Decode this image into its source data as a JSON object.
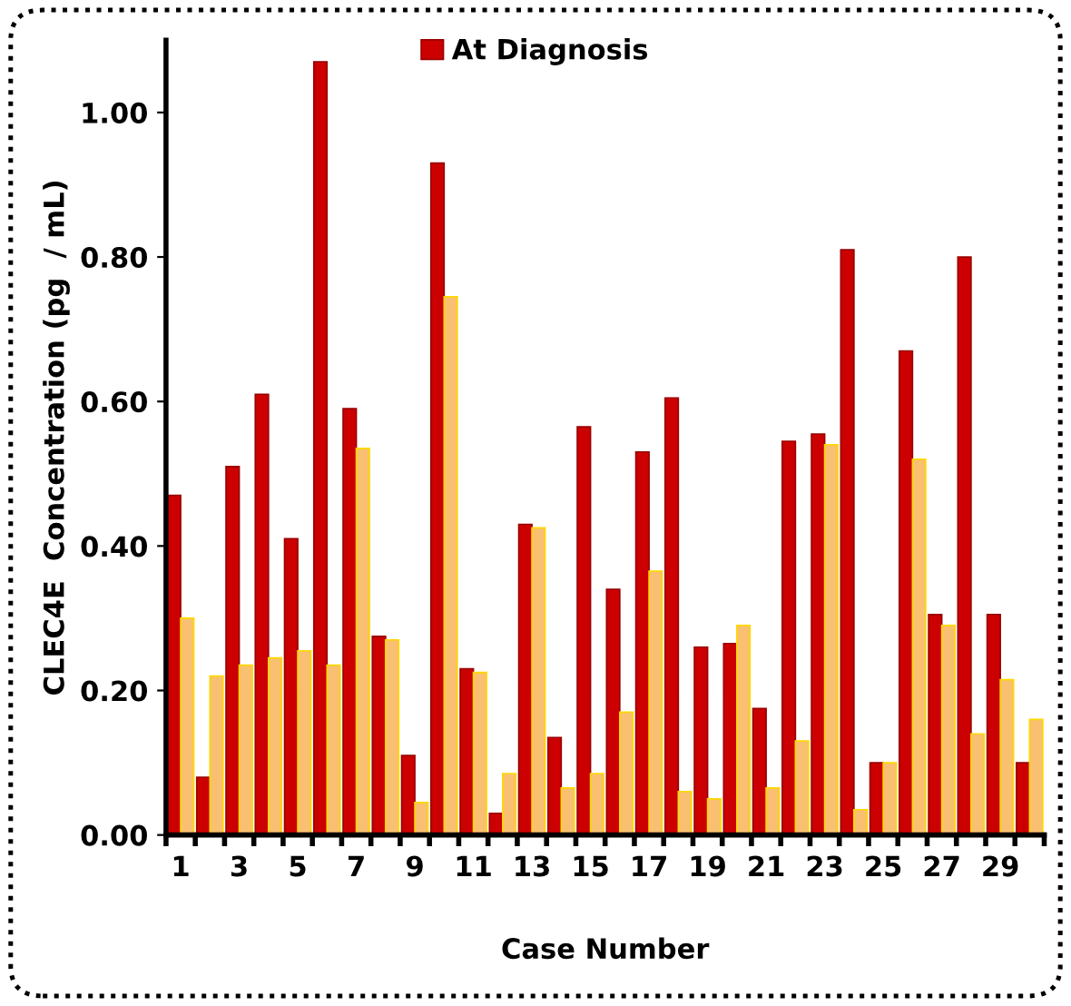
{
  "chart_data": {
    "type": "bar",
    "xlabel": "Case Number",
    "ylabel": "CLEC4E  Concentration (pg  / mL)",
    "categories": [
      "1",
      null,
      "3",
      null,
      "5",
      null,
      "7",
      null,
      "9",
      null,
      "11",
      null,
      "13",
      null,
      "15",
      null,
      "17",
      null,
      "19",
      null,
      "21",
      null,
      "23",
      null,
      "25",
      null,
      "27",
      null,
      "29",
      null
    ],
    "series": [
      {
        "name": "At Diagnosis",
        "color": "#cc0000",
        "values": [
          0.47,
          0.08,
          0.51,
          0.61,
          0.41,
          1.07,
          0.59,
          0.275,
          0.11,
          0.93,
          0.23,
          0.03,
          0.43,
          0.135,
          0.565,
          0.34,
          0.53,
          0.605,
          0.26,
          0.265,
          0.175,
          0.545,
          0.555,
          0.81,
          0.1,
          0.67,
          0.305,
          0.8,
          0.305,
          0.1
        ]
      },
      {
        "color": "#f8c070",
        "values": [
          0.3,
          0.22,
          0.235,
          0.245,
          0.255,
          0.235,
          0.535,
          0.27,
          0.045,
          0.745,
          0.225,
          0.085,
          0.425,
          0.065,
          0.085,
          0.17,
          0.365,
          0.06,
          0.05,
          0.29,
          0.065,
          0.13,
          0.54,
          0.035,
          0.1,
          0.52,
          0.29,
          0.14,
          0.215,
          0.16
        ]
      }
    ],
    "ylim": [
      0,
      1.1
    ],
    "yticks": [
      {
        "value": 0,
        "label": "0.00"
      },
      {
        "value": 0.2,
        "label": "0.20"
      },
      {
        "value": 0.4,
        "label": "0.40"
      },
      {
        "value": 0.6,
        "label": "0.60"
      },
      {
        "value": 0.8,
        "label": "0.80"
      },
      {
        "value": 1.0,
        "label": "1.00"
      }
    ],
    "grid": false,
    "legend": "top"
  }
}
